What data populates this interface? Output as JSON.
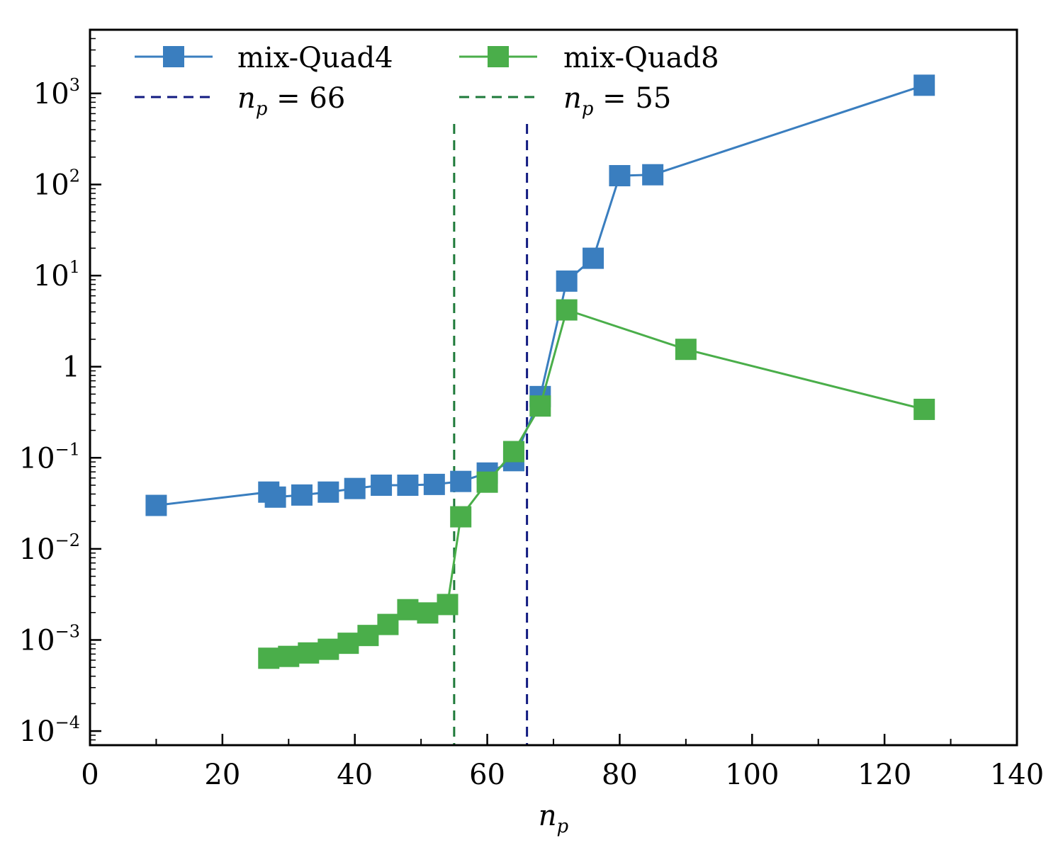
{
  "chart_data": {
    "type": "line",
    "title": "",
    "xlabel": "n_p",
    "xlabel_main": "n",
    "xlabel_sub": "p",
    "ylabel": "",
    "yscale": "log",
    "xlim": [
      0,
      140
    ],
    "ylim": [
      7e-05,
      5000
    ],
    "x_ticks": [
      {
        "value": 0,
        "label": "0"
      },
      {
        "value": 20,
        "label": "20"
      },
      {
        "value": 40,
        "label": "40"
      },
      {
        "value": 60,
        "label": "60"
      },
      {
        "value": 80,
        "label": "80"
      },
      {
        "value": 100,
        "label": "100"
      },
      {
        "value": 120,
        "label": "120"
      },
      {
        "value": 140,
        "label": "140"
      }
    ],
    "y_ticks": [
      {
        "value": 0.0001,
        "base": "10",
        "exp": "−4",
        "label": ""
      },
      {
        "value": 0.001,
        "base": "10",
        "exp": "−3",
        "label": ""
      },
      {
        "value": 0.01,
        "base": "10",
        "exp": "−2",
        "label": ""
      },
      {
        "value": 0.1,
        "base": "10",
        "exp": "−1",
        "label": ""
      },
      {
        "value": 1,
        "base": "",
        "exp": "",
        "label": "1"
      },
      {
        "value": 10,
        "base": "10",
        "exp": "1",
        "label": ""
      },
      {
        "value": 100,
        "base": "10",
        "exp": "2",
        "label": ""
      },
      {
        "value": 1000,
        "base": "10",
        "exp": "3",
        "label": ""
      }
    ],
    "series": [
      {
        "name": "mix-Quad4",
        "color": "#3a7ebf",
        "marker": "square",
        "x": [
          10,
          27,
          28,
          32,
          36,
          40,
          44,
          48,
          52,
          56,
          60,
          64,
          68,
          72,
          76,
          80,
          85,
          126
        ],
        "y": [
          0.03,
          0.042,
          0.037,
          0.039,
          0.042,
          0.046,
          0.05,
          0.05,
          0.051,
          0.055,
          0.068,
          0.093,
          0.47,
          8.7,
          15.5,
          125,
          128,
          1230
        ]
      },
      {
        "name": "mix-Quad8",
        "color": "#4aae4a",
        "marker": "square",
        "x": [
          27,
          30,
          33,
          36,
          39,
          42,
          45,
          48,
          51,
          54,
          56,
          60,
          64,
          68,
          72,
          90,
          126
        ],
        "y": [
          0.00063,
          0.00066,
          0.00072,
          0.00079,
          0.00092,
          0.00112,
          0.00148,
          0.00215,
          0.00198,
          0.00245,
          0.0225,
          0.054,
          0.117,
          0.37,
          4.2,
          1.55,
          0.34
        ]
      }
    ],
    "vlines": [
      {
        "name": "np66",
        "x": 66,
        "color": "#111a80",
        "label_main": "n",
        "label_sub": "p",
        "label_rest": " = 66"
      },
      {
        "name": "np55",
        "x": 55,
        "color": "#1e7a3a",
        "label_main": "n",
        "label_sub": "p",
        "label_rest": " = 55"
      }
    ],
    "legend": {
      "position": "top",
      "columns": 2,
      "entries": [
        "mix-Quad4",
        "mix-Quad8",
        "n_p = 66",
        "n_p = 55"
      ]
    },
    "grid": false
  }
}
